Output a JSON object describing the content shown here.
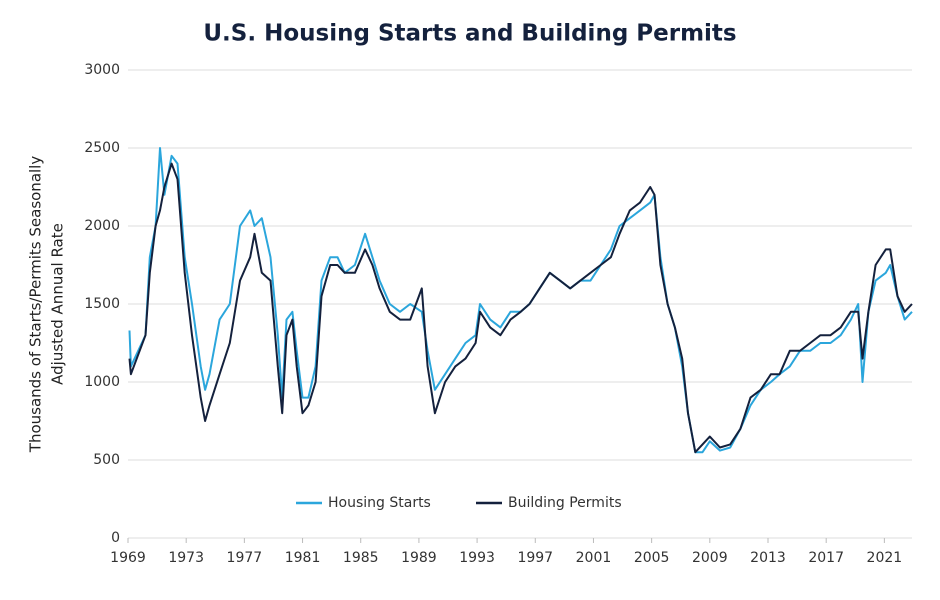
{
  "chart_data": {
    "type": "line",
    "title": "U.S. Housing Starts and Building Permits",
    "ylabel": [
      "Thousands of Starts/Permits Seasonally",
      "Adjusted Annual Rate"
    ],
    "x": [
      1969.1,
      1969.2,
      1970.2,
      1970.5,
      1970.9,
      1971.2,
      1971.5,
      1972.0,
      1972.4,
      1972.9,
      1973.4,
      1974.0,
      1974.3,
      1974.6,
      1975.3,
      1976.0,
      1976.7,
      1977.4,
      1977.7,
      1978.2,
      1978.8,
      1979.3,
      1979.6,
      1979.9,
      1980.3,
      1980.6,
      1981.0,
      1981.4,
      1981.9,
      1982.3,
      1982.9,
      1983.4,
      1983.9,
      1984.6,
      1985.3,
      1985.8,
      1986.3,
      1987.0,
      1987.7,
      1988.4,
      1989.2,
      1989.6,
      1990.1,
      1990.8,
      1991.5,
      1992.2,
      1992.9,
      1993.2,
      1993.9,
      1994.6,
      1995.3,
      1996.0,
      1996.6,
      1997.3,
      1998.0,
      1998.7,
      1999.4,
      2000.1,
      2000.8,
      2001.5,
      2002.2,
      2002.8,
      2003.5,
      2004.2,
      2004.9,
      2005.2,
      2005.6,
      2006.1,
      2006.6,
      2007.1,
      2007.5,
      2008.0,
      2008.5,
      2009.0,
      2009.7,
      2010.4,
      2011.1,
      2011.8,
      2012.5,
      2013.2,
      2013.8,
      2014.5,
      2015.2,
      2015.9,
      2016.6,
      2017.3,
      2018.0,
      2018.7,
      2019.2,
      2019.5,
      2019.9,
      2020.4,
      2021.1,
      2021.4,
      2021.9,
      2022.4,
      2022.9
    ],
    "series": [
      {
        "name": "Housing Starts",
        "color": "#2ba6dc",
        "values": [
          1330,
          1100,
          1300,
          1800,
          2000,
          2500,
          2200,
          2450,
          2400,
          1800,
          1500,
          1100,
          950,
          1050,
          1400,
          1500,
          2000,
          2100,
          2000,
          2050,
          1800,
          1300,
          900,
          1400,
          1450,
          1200,
          900,
          900,
          1100,
          1650,
          1800,
          1800,
          1700,
          1750,
          1950,
          1800,
          1650,
          1500,
          1450,
          1500,
          1450,
          1200,
          950,
          1050,
          1150,
          1250,
          1300,
          1500,
          1400,
          1350,
          1450,
          1450,
          1500,
          1600,
          1700,
          1650,
          1600,
          1650,
          1650,
          1750,
          1850,
          2000,
          2050,
          2100,
          2150,
          2200,
          1800,
          1500,
          1350,
          1100,
          800,
          550,
          550,
          620,
          560,
          580,
          700,
          850,
          950,
          1000,
          1050,
          1100,
          1200,
          1200,
          1250,
          1250,
          1300,
          1400,
          1500,
          1000,
          1450,
          1650,
          1700,
          1750,
          1550,
          1400,
          1450
        ]
      },
      {
        "name": "Building Permits",
        "color": "#14213d",
        "values": [
          1150,
          1050,
          1300,
          1700,
          2000,
          2100,
          2250,
          2400,
          2300,
          1700,
          1300,
          900,
          750,
          850,
          1050,
          1250,
          1650,
          1800,
          1950,
          1700,
          1650,
          1100,
          800,
          1300,
          1400,
          1100,
          800,
          850,
          1000,
          1550,
          1750,
          1750,
          1700,
          1700,
          1850,
          1750,
          1600,
          1450,
          1400,
          1400,
          1600,
          1100,
          800,
          1000,
          1100,
          1150,
          1250,
          1450,
          1350,
          1300,
          1400,
          1450,
          1500,
          1600,
          1700,
          1650,
          1600,
          1650,
          1700,
          1750,
          1800,
          1950,
          2100,
          2150,
          2250,
          2200,
          1750,
          1500,
          1350,
          1150,
          800,
          550,
          600,
          650,
          580,
          600,
          700,
          900,
          950,
          1050,
          1050,
          1200,
          1200,
          1250,
          1300,
          1300,
          1350,
          1450,
          1450,
          1150,
          1450,
          1750,
          1850,
          1850,
          1550,
          1450,
          1500
        ]
      }
    ],
    "xlim": [
      1969,
      2022.9
    ],
    "xticks": [
      1969,
      1973,
      1977,
      1981,
      1985,
      1989,
      1993,
      1997,
      2001,
      2005,
      2009,
      2013,
      2017,
      2021
    ],
    "ylim": [
      0,
      3000
    ],
    "yticks": [
      0,
      500,
      1000,
      1500,
      2000,
      2500,
      3000
    ],
    "grid": true,
    "legend": "bottom"
  }
}
